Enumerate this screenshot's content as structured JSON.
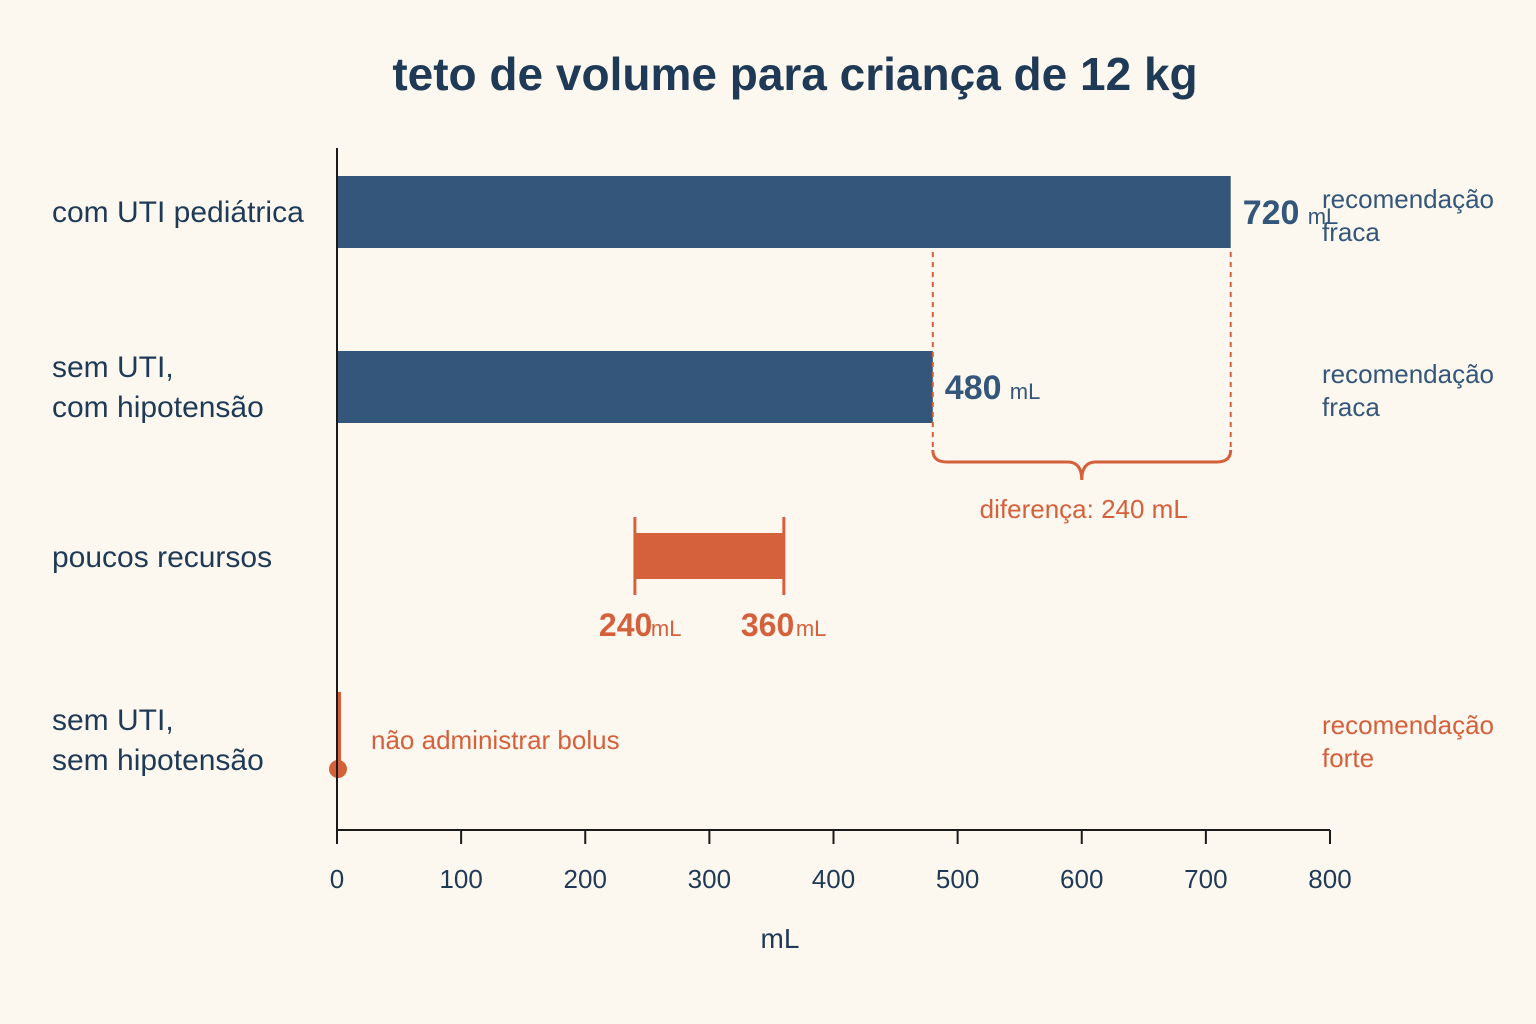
{
  "chart_data": {
    "type": "bar",
    "title": "teto de volume para criança de 12 kg",
    "xlabel": "mL",
    "xlim": [
      0,
      800
    ],
    "xticks": [
      "0",
      "100",
      "200",
      "300",
      "400",
      "500",
      "600",
      "700",
      "800"
    ],
    "categories": [
      [
        "com UTI pediátrica"
      ],
      [
        "sem UTI,",
        "com hipotensão"
      ],
      [
        "poucos recursos"
      ],
      [
        "sem UTI,",
        "sem hipotensão"
      ]
    ],
    "bars": [
      {
        "value": 720,
        "value_text": "720",
        "unit": "mL",
        "recommendation": [
          "recomendação",
          "fraca"
        ]
      },
      {
        "value": 480,
        "value_text": "480",
        "unit": "mL",
        "recommendation": [
          "recomendação",
          "fraca"
        ]
      },
      {
        "range": [
          240,
          360
        ],
        "low_text": "240",
        "high_text": "360",
        "unit": "mL"
      },
      {
        "value": 0,
        "note": "não administrar bolus",
        "recommendation": [
          "recomendação",
          "forte"
        ]
      }
    ],
    "difference": {
      "from": 480,
      "to": 720,
      "label": "diferença: 240 mL"
    },
    "colors": {
      "primary": "#33567a",
      "accent": "#d4603c",
      "text": "#1f3a56",
      "background": "#fdf8ef"
    }
  }
}
